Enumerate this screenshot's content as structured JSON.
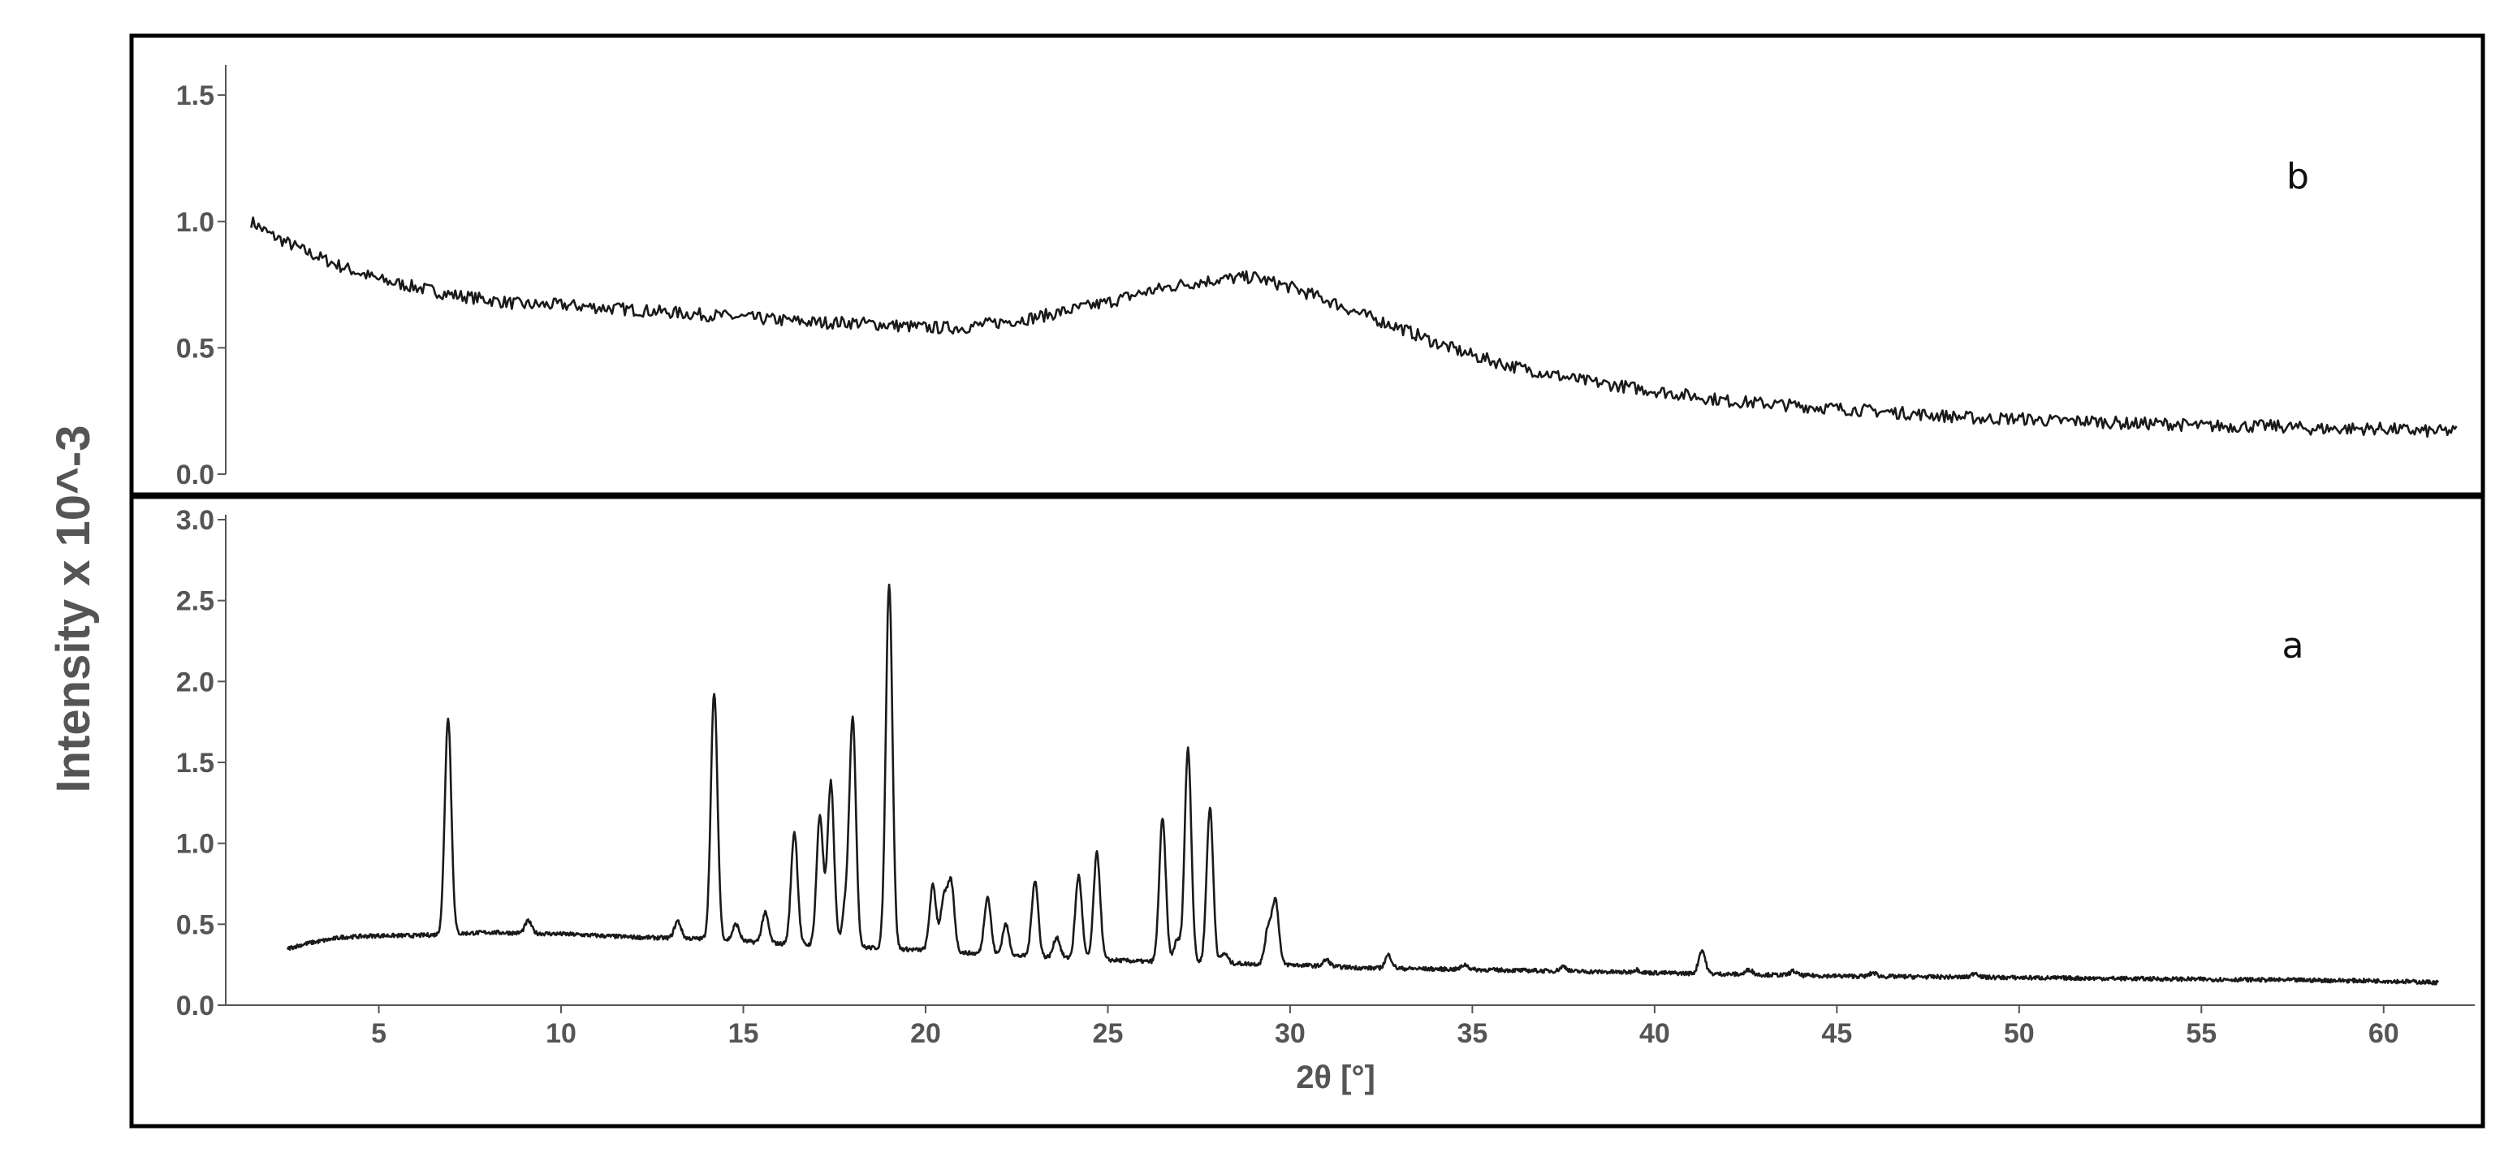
{
  "chart_data": [
    {
      "type": "line",
      "panel_label": "b",
      "xlabel": "",
      "ylabel": "Intensity x 10^-3",
      "xlim": [
        0.8,
        62.5
      ],
      "ylim": [
        0,
        1.6
      ],
      "yticks": [
        "0.0",
        "0.5",
        "1.0",
        "1.5"
      ],
      "grid": false,
      "series": [
        {
          "color": "#1a1a1a",
          "x": [
            1.5,
            2,
            3,
            4,
            5,
            6,
            7,
            8,
            9,
            10,
            11,
            12,
            13,
            14,
            15,
            16,
            17,
            18,
            19,
            20,
            21,
            22,
            23,
            24,
            25,
            26,
            27,
            28,
            29,
            30,
            31,
            32,
            33,
            34,
            35,
            36,
            37,
            38,
            39,
            40,
            41,
            42,
            43,
            44,
            45,
            46,
            47,
            48,
            49,
            50,
            51,
            52,
            53,
            54,
            55,
            56,
            57,
            58,
            59,
            60,
            61,
            62
          ],
          "y": [
            1.0,
            0.95,
            0.88,
            0.82,
            0.77,
            0.74,
            0.71,
            0.69,
            0.67,
            0.67,
            0.66,
            0.65,
            0.64,
            0.63,
            0.62,
            0.61,
            0.6,
            0.6,
            0.59,
            0.58,
            0.58,
            0.6,
            0.62,
            0.65,
            0.68,
            0.72,
            0.75,
            0.77,
            0.78,
            0.74,
            0.69,
            0.63,
            0.58,
            0.52,
            0.47,
            0.43,
            0.4,
            0.37,
            0.35,
            0.33,
            0.31,
            0.29,
            0.28,
            0.27,
            0.26,
            0.25,
            0.24,
            0.23,
            0.22,
            0.22,
            0.21,
            0.21,
            0.2,
            0.2,
            0.19,
            0.19,
            0.19,
            0.18,
            0.18,
            0.18,
            0.17,
            0.17
          ]
        }
      ]
    },
    {
      "type": "line",
      "panel_label": "a",
      "xlabel": "2θ [°]",
      "ylabel": "Intensity x 10^-3",
      "xlim": [
        0.8,
        62.5
      ],
      "ylim": [
        0,
        3.0
      ],
      "xticks": [
        "5",
        "10",
        "15",
        "20",
        "25",
        "30",
        "35",
        "40",
        "45",
        "50",
        "55",
        "60"
      ],
      "yticks": [
        "0.0",
        "0.5",
        "1.0",
        "1.5",
        "2.0",
        "2.5",
        "3.0"
      ],
      "grid": false,
      "baseline": {
        "x": [
          2.5,
          3,
          4,
          5,
          6,
          7,
          8,
          10,
          12,
          14,
          16,
          18,
          20,
          22,
          24,
          26,
          28,
          30,
          32,
          35,
          40,
          45,
          50,
          55,
          60,
          61.5
        ],
        "y": [
          0.35,
          0.38,
          0.42,
          0.43,
          0.43,
          0.44,
          0.45,
          0.44,
          0.42,
          0.41,
          0.38,
          0.36,
          0.34,
          0.31,
          0.29,
          0.27,
          0.26,
          0.25,
          0.23,
          0.22,
          0.2,
          0.18,
          0.17,
          0.16,
          0.15,
          0.14
        ]
      },
      "peaks": [
        {
          "x": 6.9,
          "y": 1.78
        },
        {
          "x": 9.1,
          "y": 0.52
        },
        {
          "x": 13.2,
          "y": 0.52
        },
        {
          "x": 14.2,
          "y": 1.93
        },
        {
          "x": 14.8,
          "y": 0.5
        },
        {
          "x": 15.6,
          "y": 0.57
        },
        {
          "x": 16.4,
          "y": 1.07
        },
        {
          "x": 17.1,
          "y": 1.17
        },
        {
          "x": 17.4,
          "y": 1.38
        },
        {
          "x": 17.8,
          "y": 0.6
        },
        {
          "x": 18.0,
          "y": 1.76
        },
        {
          "x": 19.0,
          "y": 2.61
        },
        {
          "x": 20.2,
          "y": 0.74
        },
        {
          "x": 20.5,
          "y": 0.65
        },
        {
          "x": 20.7,
          "y": 0.75
        },
        {
          "x": 21.7,
          "y": 0.67
        },
        {
          "x": 22.2,
          "y": 0.5
        },
        {
          "x": 23.0,
          "y": 0.77
        },
        {
          "x": 23.6,
          "y": 0.42
        },
        {
          "x": 24.2,
          "y": 0.8
        },
        {
          "x": 24.7,
          "y": 0.94
        },
        {
          "x": 26.5,
          "y": 1.15
        },
        {
          "x": 26.9,
          "y": 0.4
        },
        {
          "x": 27.2,
          "y": 1.59
        },
        {
          "x": 27.8,
          "y": 1.22
        },
        {
          "x": 28.2,
          "y": 0.32
        },
        {
          "x": 29.4,
          "y": 0.47
        },
        {
          "x": 29.6,
          "y": 0.64
        },
        {
          "x": 31.0,
          "y": 0.28
        },
        {
          "x": 32.7,
          "y": 0.31
        },
        {
          "x": 34.8,
          "y": 0.25
        },
        {
          "x": 37.5,
          "y": 0.24
        },
        {
          "x": 39.5,
          "y": 0.22
        },
        {
          "x": 41.3,
          "y": 0.34
        },
        {
          "x": 42.6,
          "y": 0.22
        },
        {
          "x": 43.8,
          "y": 0.21
        },
        {
          "x": 46.0,
          "y": 0.2
        },
        {
          "x": 48.8,
          "y": 0.2
        }
      ]
    }
  ]
}
